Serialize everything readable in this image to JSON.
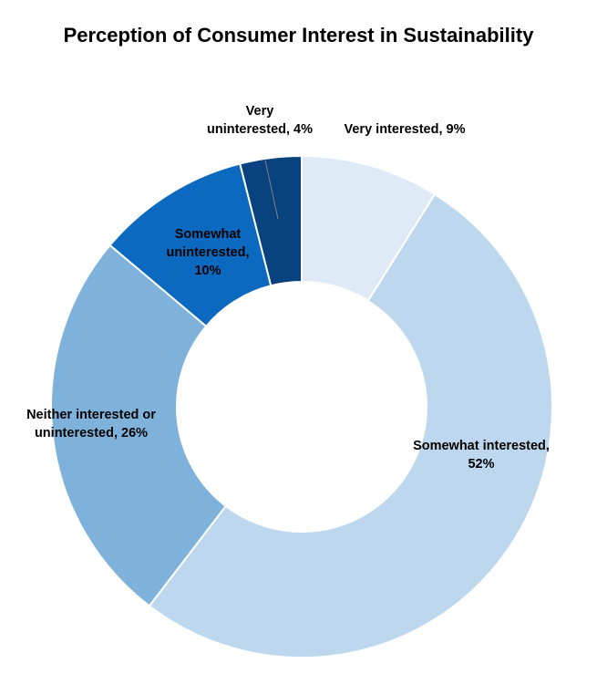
{
  "chart_data": {
    "type": "pie",
    "variant": "donut",
    "title": "Perception of Consumer Interest in Sustainability",
    "slices": [
      {
        "label": "Very interested",
        "value": 9,
        "display": "9%",
        "color": "#deebf7"
      },
      {
        "label": "Somewhat interested",
        "value": 52,
        "display": "52%",
        "color": "#bdd7ee"
      },
      {
        "label": "Neither interested or uninterested",
        "value": 26,
        "display": "26%",
        "color": "#7fb2db"
      },
      {
        "label": "Somewhat uninterested",
        "value": 10,
        "display": "10%",
        "color": "#0b6abf"
      },
      {
        "label": "Very uninterested",
        "value": 4,
        "display": "4%",
        "color": "#08427f"
      }
    ],
    "data_labels": [
      [
        "Very interested, 9%"
      ],
      [
        "Somewhat interested,",
        "52%"
      ],
      [
        "Neither interested or",
        "uninterested, 26%"
      ],
      [
        "Somewhat",
        "uninterested,",
        "10%"
      ],
      [
        "Very",
        "uninterested, 4%"
      ]
    ],
    "legend": "none"
  }
}
